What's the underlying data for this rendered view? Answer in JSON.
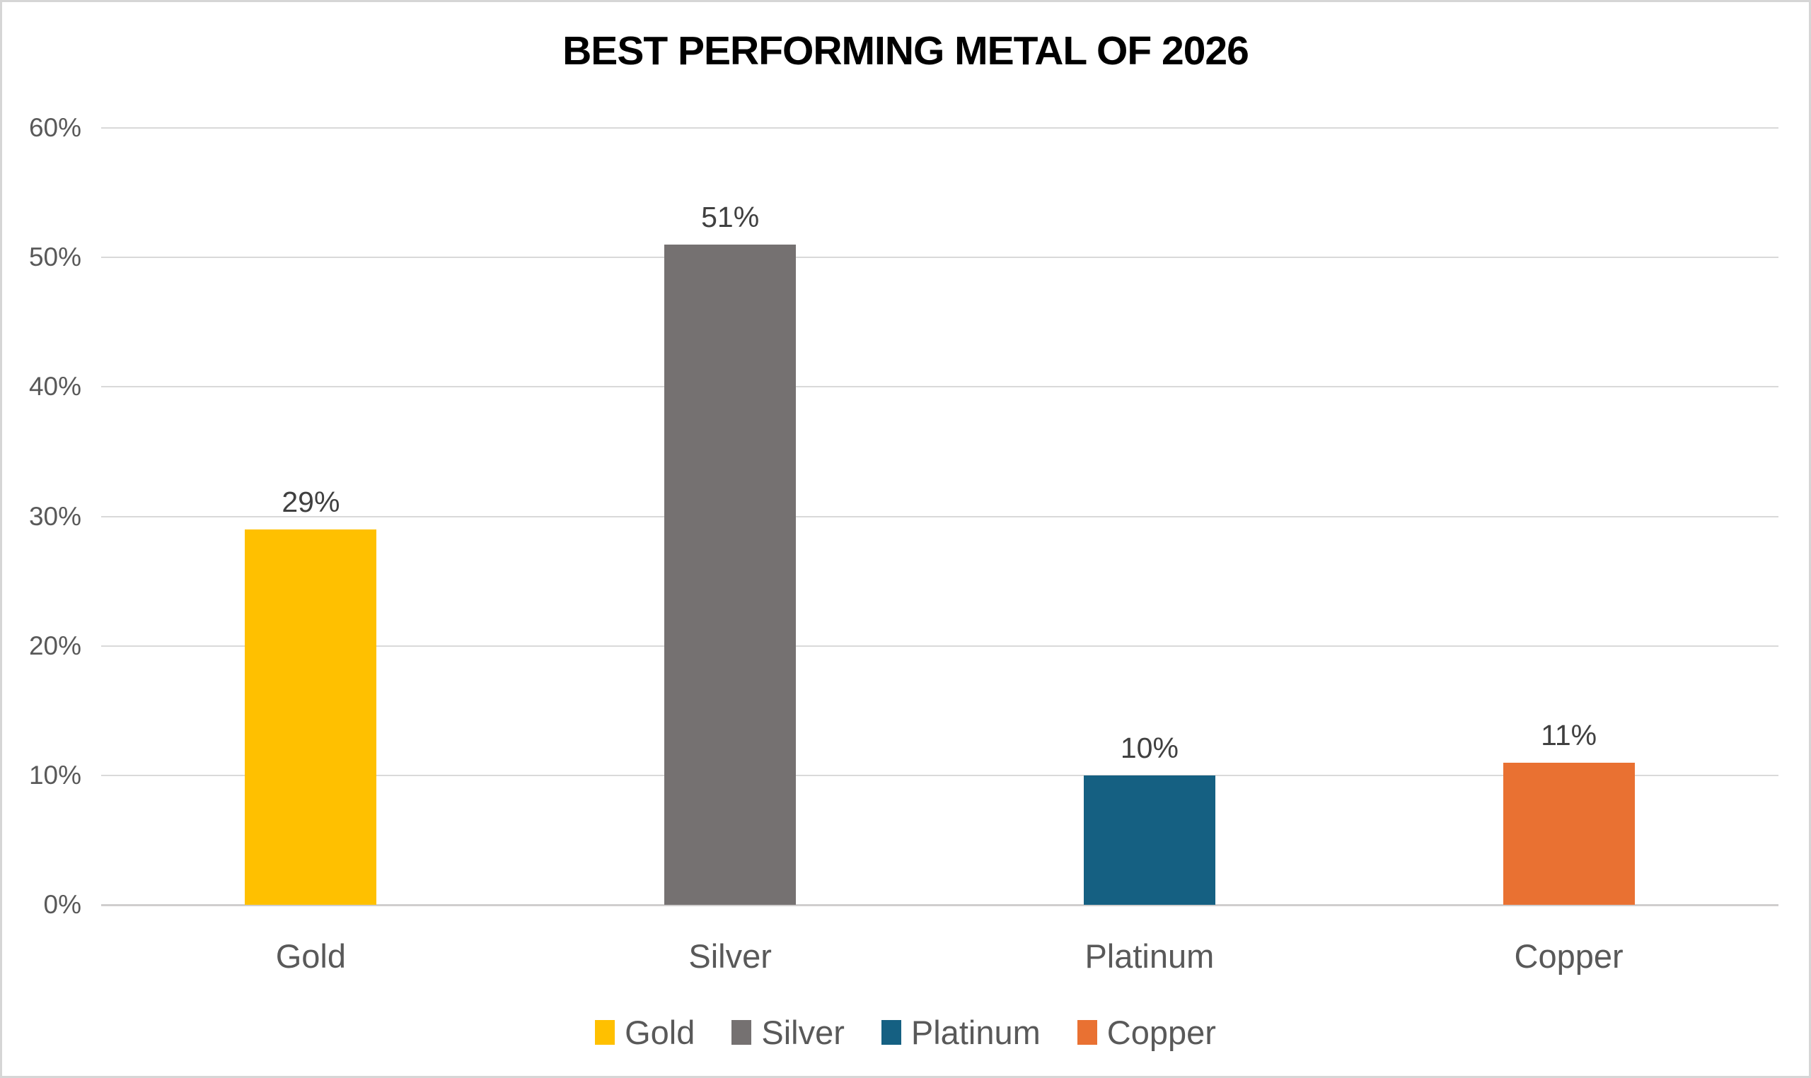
{
  "chart_data": {
    "type": "bar",
    "title": "BEST PERFORMING METAL OF 2026",
    "categories": [
      "Gold",
      "Silver",
      "Platinum",
      "Copper"
    ],
    "values": [
      29,
      51,
      10,
      11
    ],
    "data_labels": [
      "29%",
      "51%",
      "10%",
      "11%"
    ],
    "bar_colors": [
      "#FFC000",
      "#757171",
      "#156082",
      "#E97132"
    ],
    "xlabel": "",
    "ylabel": "",
    "ylim": [
      0,
      60
    ],
    "yticks": [
      {
        "value": 0,
        "label": "0%"
      },
      {
        "value": 10,
        "label": "10%"
      },
      {
        "value": 20,
        "label": "20%"
      },
      {
        "value": 30,
        "label": "30%"
      },
      {
        "value": 40,
        "label": "40%"
      },
      {
        "value": 50,
        "label": "50%"
      },
      {
        "value": 60,
        "label": "60%"
      }
    ],
    "grid": true,
    "legend": {
      "position": "bottom",
      "entries": [
        {
          "label": "Gold",
          "color": "#FFC000"
        },
        {
          "label": "Silver",
          "color": "#757171"
        },
        {
          "label": "Platinum",
          "color": "#156082"
        },
        {
          "label": "Copper",
          "color": "#E97132"
        }
      ]
    },
    "colors": {
      "gridline": "#d9d9d9",
      "axis_line": "#d0cece",
      "tick_text": "#595959",
      "data_label_text": "#404040",
      "title_text": "#000000",
      "frame_border": "#d6d6d6"
    }
  }
}
